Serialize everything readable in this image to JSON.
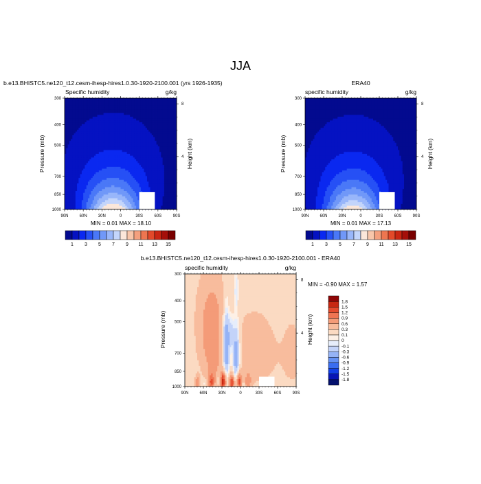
{
  "page_title": "JJA",
  "colors": {
    "seq": [
      "#030a8f",
      "#0512c2",
      "#0a28f0",
      "#2650f5",
      "#4a78f7",
      "#7098f8",
      "#98b6fa",
      "#c3d5fb",
      "#fbe7da",
      "#f8c6aa",
      "#f4a07e",
      "#ee7650",
      "#e2492a",
      "#c92512",
      "#a50f0a",
      "#7a0000"
    ],
    "diff": [
      "#04116e",
      "#0716b5",
      "#1240e6",
      "#3a6df0",
      "#6591f3",
      "#95b3f6",
      "#c3d3f9",
      "#e6edfb",
      "#fdf0e6",
      "#fbdac2",
      "#f8bc9d",
      "#f49b78",
      "#ef7452",
      "#e44a2d",
      "#c72711",
      "#8f0606"
    ]
  },
  "chart_data": [
    {
      "type": "heatmap",
      "title": "b.e13.BHISTC5.ne120_t12.cesm-ihesp-hires1.0.30-1920-2100.001 (yrs 1926-1935)",
      "left_label": "Specific humidity",
      "right_label": "g/kg",
      "ylabel": "Pressure (mb)",
      "ylabel_right": "Height (km)",
      "x_ticks": [
        "90N",
        "60N",
        "30N",
        "0",
        "30S",
        "60S",
        "90S"
      ],
      "y_ticks": [
        "300",
        "400",
        "500",
        "700",
        "850",
        "1000"
      ],
      "y_right_ticks": [
        "8",
        "4"
      ],
      "stats": "MIN =   0.01   MAX =  18.10",
      "levels": [
        1,
        3,
        5,
        7,
        9,
        11,
        13,
        15
      ],
      "field": {
        "peak": 18.1,
        "peak_lat": 12,
        "decay_per_deg": 20,
        "scale_height": 0.36,
        "width_lat": 32,
        "width_widen": 28,
        "floor": 0.01
      },
      "mask": [
        {
          "lat_from": -30,
          "lat_to": -55,
          "p_top": 830,
          "p_bottom": 1000
        }
      ]
    },
    {
      "type": "heatmap",
      "title": "ERA40",
      "left_label": "specific humidity",
      "right_label": "g/kg",
      "ylabel": "Pressure (mb)",
      "ylabel_right": "Height (km)",
      "x_ticks": [
        "90N",
        "60N",
        "30N",
        "0",
        "30S",
        "60S",
        "90S"
      ],
      "y_ticks": [
        "300",
        "400",
        "500",
        "700",
        "850",
        "1000"
      ],
      "y_right_ticks": [
        "8",
        "4"
      ],
      "stats": "MIN =   0.01   MAX =  17.13",
      "levels": [
        1,
        3,
        5,
        7,
        9,
        11,
        13,
        15
      ],
      "field": {
        "peak": 17.13,
        "peak_lat": 12,
        "decay_per_deg": 20,
        "scale_height": 0.36,
        "width_lat": 32,
        "width_widen": 28,
        "floor": 0.01
      },
      "mask": [
        {
          "lat_from": -30,
          "lat_to": -55,
          "p_top": 830,
          "p_bottom": 1000
        }
      ]
    },
    {
      "type": "heatmap",
      "title": "b.e13.BHISTC5.ne120_t12.cesm-ihesp-hires1.0.30-1920-2100.001 - ERA40",
      "left_label": "specific humidity",
      "right_label": "g/kg",
      "ylabel": "Pressure (mb)",
      "ylabel_right": "Height (km)",
      "x_ticks": [
        "90N",
        "60N",
        "30N",
        "0",
        "30S",
        "60S",
        "90S"
      ],
      "y_ticks": [
        "300",
        "400",
        "500",
        "700",
        "850",
        "1000"
      ],
      "y_right_ticks": [
        "8",
        "4"
      ],
      "stats": "MIN =  -0.90   MAX =    1.57",
      "levels": [
        -1.8,
        -1.5,
        -1.2,
        -0.9,
        -0.6,
        -0.3,
        -0.1,
        0,
        0.1,
        0.3,
        0.6,
        0.9,
        1.2,
        1.5,
        1.8
      ],
      "level_labels": [
        "-1.8",
        "-1.5",
        "-1.2",
        "-0.9",
        "-0.6",
        "-0.3",
        "-0.1",
        "0",
        "0.1",
        "0.3",
        "0.6",
        "0.9",
        "1.2",
        "1.5",
        "1.8"
      ],
      "features": [
        {
          "lat": 23,
          "p": 650,
          "dlat": 4,
          "dp": 170,
          "v": -0.9
        },
        {
          "lat": 7,
          "p": 720,
          "dlat": 4,
          "dp": 160,
          "v": -0.75
        },
        {
          "lat": 15,
          "p": 560,
          "dlat": 3,
          "dp": 70,
          "v": -0.35
        },
        {
          "lat": 7,
          "p": 360,
          "dlat": 2.5,
          "dp": 60,
          "v": -0.25
        },
        {
          "lat": 43,
          "p": 700,
          "dlat": 12,
          "dp": 260,
          "v": 0.55
        },
        {
          "lat": 60,
          "p": 560,
          "dlat": 12,
          "dp": 170,
          "v": 0.3
        },
        {
          "lat": -25,
          "p": 700,
          "dlat": 30,
          "dp": 230,
          "v": 0.32
        },
        {
          "lat": 38,
          "p": 400,
          "dlat": 22,
          "dp": 90,
          "v": 0.18
        },
        {
          "lat": 28,
          "p": 950,
          "dlat": 3,
          "dp": 60,
          "v": 1.5
        },
        {
          "lat": 14,
          "p": 960,
          "dlat": 3,
          "dp": 55,
          "v": 1.3
        },
        {
          "lat": 2,
          "p": 950,
          "dlat": 3,
          "dp": 60,
          "v": 1.2
        },
        {
          "lat": 47,
          "p": 960,
          "dlat": 3,
          "dp": 60,
          "v": 0.9
        },
        {
          "lat": 70,
          "p": 960,
          "dlat": 3,
          "dp": 50,
          "v": 0.7
        },
        {
          "lat": -12,
          "p": 950,
          "dlat": 4,
          "dp": 60,
          "v": 0.6
        },
        {
          "lat": 35,
          "p": 930,
          "dlat": 2,
          "dp": 40,
          "v": -0.35
        },
        {
          "lat": 58,
          "p": 970,
          "dlat": 2,
          "dp": 30,
          "v": -0.2
        },
        {
          "lat": -5,
          "p": 985,
          "dlat": 2,
          "dp": 30,
          "v": -0.3
        },
        {
          "lat": -85,
          "p": 720,
          "dlat": 12,
          "dp": 200,
          "v": 0.25
        }
      ],
      "background": 0.12,
      "mask": [
        {
          "lat_from": -30,
          "lat_to": -55,
          "p_top": 900,
          "p_bottom": 1000
        }
      ]
    }
  ]
}
